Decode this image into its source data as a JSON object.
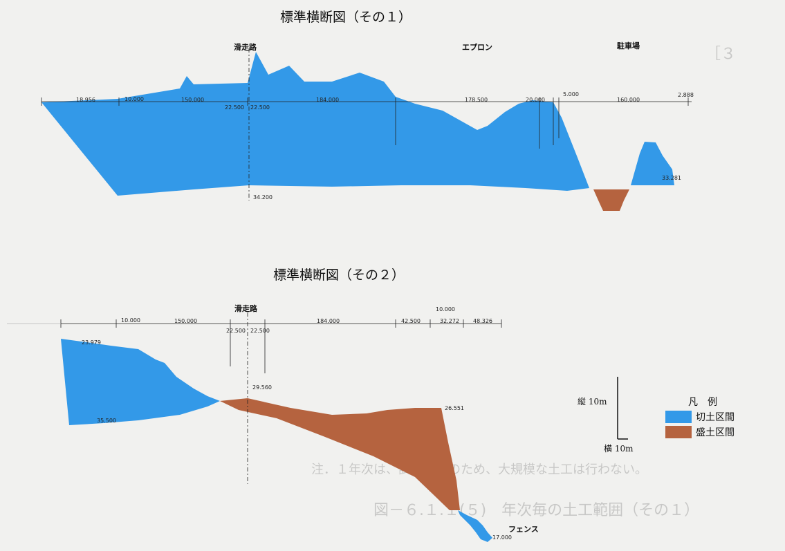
{
  "section1": {
    "title": "標準横断図（その１）",
    "labels": {
      "runway": "滑走路",
      "apron": "エプロン",
      "parking": "駐車場"
    },
    "dimensions": [
      "18.956",
      "10.000",
      "150.000",
      "22.500",
      "22.500",
      "184.000",
      "178.500",
      "20.000",
      "5.000",
      "160.000",
      "2.888",
      "34.200",
      "33.281"
    ]
  },
  "section2": {
    "title": "標準横断図（その２）",
    "labels": {
      "runway": "滑走路",
      "fence": "フェンス"
    },
    "dimensions": [
      "10.000",
      "150.000",
      "22.500",
      "22.500",
      "184.000",
      "42.500",
      "10.000",
      "32.272",
      "48.326",
      "23.979",
      "29.560",
      "26.551",
      "35.500",
      "17.000"
    ]
  },
  "legend": {
    "title": "凡　例",
    "items": [
      {
        "label": "切土区間",
        "color": "#3399e8"
      },
      {
        "label": "盛土区間",
        "color": "#b5633f"
      }
    ]
  },
  "scale": {
    "vertical": "縦 10m",
    "horizontal": "横 10m"
  },
  "colors": {
    "cut": "#3399e8",
    "fill": "#b5633f"
  }
}
